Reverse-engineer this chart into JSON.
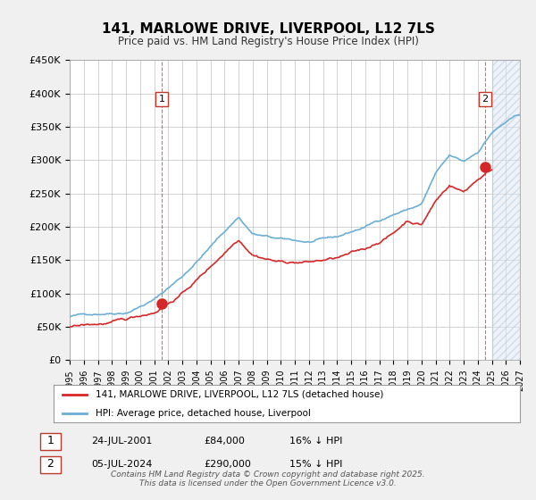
{
  "title": "141, MARLOWE DRIVE, LIVERPOOL, L12 7LS",
  "subtitle": "Price paid vs. HM Land Registry's House Price Index (HPI)",
  "hpi_color": "#6baed6",
  "price_color": "#d62728",
  "background_color": "#f0f0f0",
  "plot_bg_color": "#ffffff",
  "grid_color": "#c0c0c0",
  "xmin": 1995.0,
  "xmax": 2027.0,
  "ymin": 0,
  "ymax": 450000,
  "yticks": [
    0,
    50000,
    100000,
    150000,
    200000,
    250000,
    300000,
    350000,
    400000,
    450000
  ],
  "ytick_labels": [
    "£0",
    "£50K",
    "£100K",
    "£150K",
    "£200K",
    "£250K",
    "£300K",
    "£350K",
    "£400K",
    "£450K"
  ],
  "legend_entry1": "141, MARLOWE DRIVE, LIVERPOOL, L12 7LS (detached house)",
  "legend_entry2": "HPI: Average price, detached house, Liverpool",
  "marker1_x": 2001.56,
  "marker1_y": 84000,
  "marker2_x": 2024.51,
  "marker2_y": 290000,
  "footer": "Contains HM Land Registry data © Crown copyright and database right 2025.\nThis data is licensed under the Open Government Licence v3.0.",
  "hpi_region_xmin": 2025.0,
  "hpi_region_xmax": 2027.0
}
